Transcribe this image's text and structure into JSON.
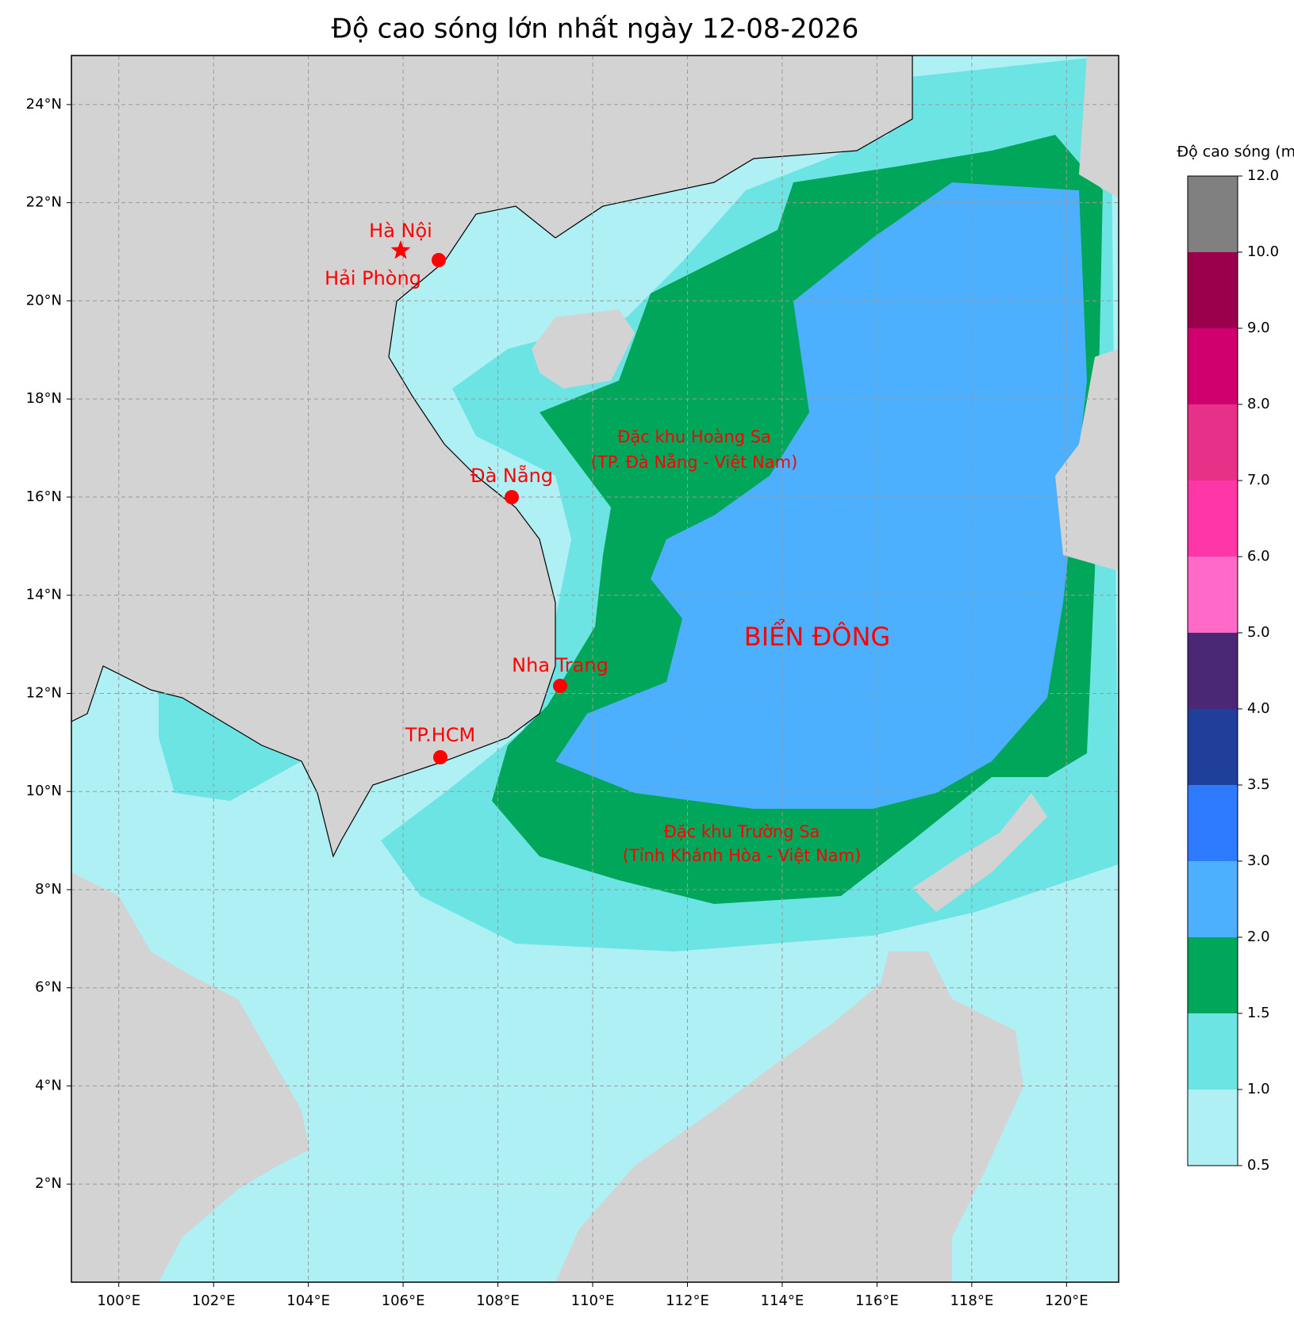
{
  "title": "Độ cao sóng lớn nhất ngày 12-08-2026",
  "map": {
    "xlim": [
      99,
      121.1
    ],
    "ylim": [
      0,
      25
    ],
    "grid": true,
    "xticks": [
      {
        "value": 100,
        "label": "100°E"
      },
      {
        "value": 102,
        "label": "102°E"
      },
      {
        "value": 104,
        "label": "104°E"
      },
      {
        "value": 106,
        "label": "106°E"
      },
      {
        "value": 108,
        "label": "108°E"
      },
      {
        "value": 110,
        "label": "110°E"
      },
      {
        "value": 112,
        "label": "112°E"
      },
      {
        "value": 114,
        "label": "114°E"
      },
      {
        "value": 116,
        "label": "116°E"
      },
      {
        "value": 118,
        "label": "118°E"
      },
      {
        "value": 120,
        "label": "120°E"
      }
    ],
    "yticks": [
      {
        "value": 2,
        "label": "2°N"
      },
      {
        "value": 4,
        "label": "4°N"
      },
      {
        "value": 6,
        "label": "6°N"
      },
      {
        "value": 8,
        "label": "8°N"
      },
      {
        "value": 10,
        "label": "10°N"
      },
      {
        "value": 12,
        "label": "12°N"
      },
      {
        "value": 14,
        "label": "14°N"
      },
      {
        "value": 16,
        "label": "16°N"
      },
      {
        "value": 18,
        "label": "18°N"
      },
      {
        "value": 20,
        "label": "20°N"
      },
      {
        "value": 22,
        "label": "22°N"
      },
      {
        "value": 24,
        "label": "24°N"
      }
    ],
    "cities": [
      "Hà Nội",
      "Hải Phòng",
      "Đà Nẵng",
      "Nha Trang",
      "TP.HCM"
    ],
    "regions": [
      "Đặc khu Hoàng Sa",
      "(TP. Đà Nẵng - Việt Nam)",
      "Đặc khu Trường Sa",
      "(Tỉnh Khánh Hòa - Việt Nam)"
    ],
    "sea": "BIỂN ĐÔNG"
  },
  "colorbar": {
    "title": "Độ cao sóng (m)",
    "ticks": [
      {
        "value": 0.5,
        "label": "0.5"
      },
      {
        "value": 1,
        "label": "1.0"
      },
      {
        "value": 1.5,
        "label": "1.5"
      },
      {
        "value": 2,
        "label": "2.0"
      },
      {
        "value": 3,
        "label": "3.0"
      },
      {
        "value": 3.5,
        "label": "3.5"
      },
      {
        "value": 4,
        "label": "4.0"
      },
      {
        "value": 5,
        "label": "5.0"
      },
      {
        "value": 6,
        "label": "6.0"
      },
      {
        "value": 7,
        "label": "7.0"
      },
      {
        "value": 8,
        "label": "8.0"
      },
      {
        "value": 9,
        "label": "9.0"
      },
      {
        "value": 10,
        "label": "10.0"
      },
      {
        "value": 12,
        "label": "12.0"
      }
    ],
    "colors": [
      "#aff0f5",
      "#6de4e4",
      "#00a65a",
      "#4cb0ff",
      "#2d7aff",
      "#1f3f9a",
      "#4b2875",
      "#ff6ac8",
      "#ff36a8",
      "#e73189",
      "#d1006f",
      "#9b004d",
      "#808080"
    ]
  }
}
